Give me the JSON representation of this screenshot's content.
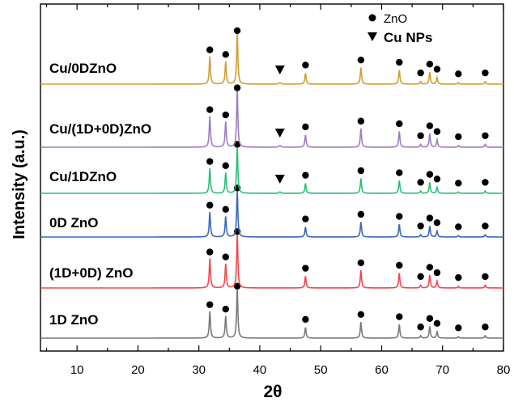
{
  "chart_data": {
    "type": "line",
    "xlabel": "2θ",
    "ylabel": "Intensity (a.u.)",
    "xlim": [
      4,
      80
    ],
    "xticks": [
      10,
      20,
      30,
      40,
      50,
      60,
      70,
      80
    ],
    "legend": {
      "placement": "top-right",
      "entries": [
        {
          "label": "ZnO",
          "marker": "circle"
        },
        {
          "label": "Cu NPs",
          "marker": "triangle-down"
        }
      ]
    },
    "zno_peaks": [
      31.8,
      34.4,
      36.3,
      47.5,
      56.6,
      62.9,
      66.4,
      67.9,
      69.1,
      72.6,
      77.0
    ],
    "zno_peak_intensities": [
      0.55,
      0.45,
      1.0,
      0.22,
      0.33,
      0.28,
      0.05,
      0.24,
      0.13,
      0.03,
      0.05
    ],
    "cu_peak": 43.3,
    "series": [
      {
        "name": "1D ZnO",
        "color": "#7a7a7a",
        "cu": false
      },
      {
        "name": "(1D+0D) ZnO",
        "color": "#f0484e",
        "cu": false
      },
      {
        "name": "0D ZnO",
        "color": "#3a68b8",
        "cu": false
      },
      {
        "name": "Cu/1DZnO",
        "color": "#2ebd78",
        "cu": true
      },
      {
        "name": "Cu/(1D+0D)ZnO",
        "color": "#9c7ec2",
        "cu": true
      },
      {
        "name": "Cu/0DZnO",
        "color": "#cfa034",
        "cu": true
      }
    ]
  }
}
